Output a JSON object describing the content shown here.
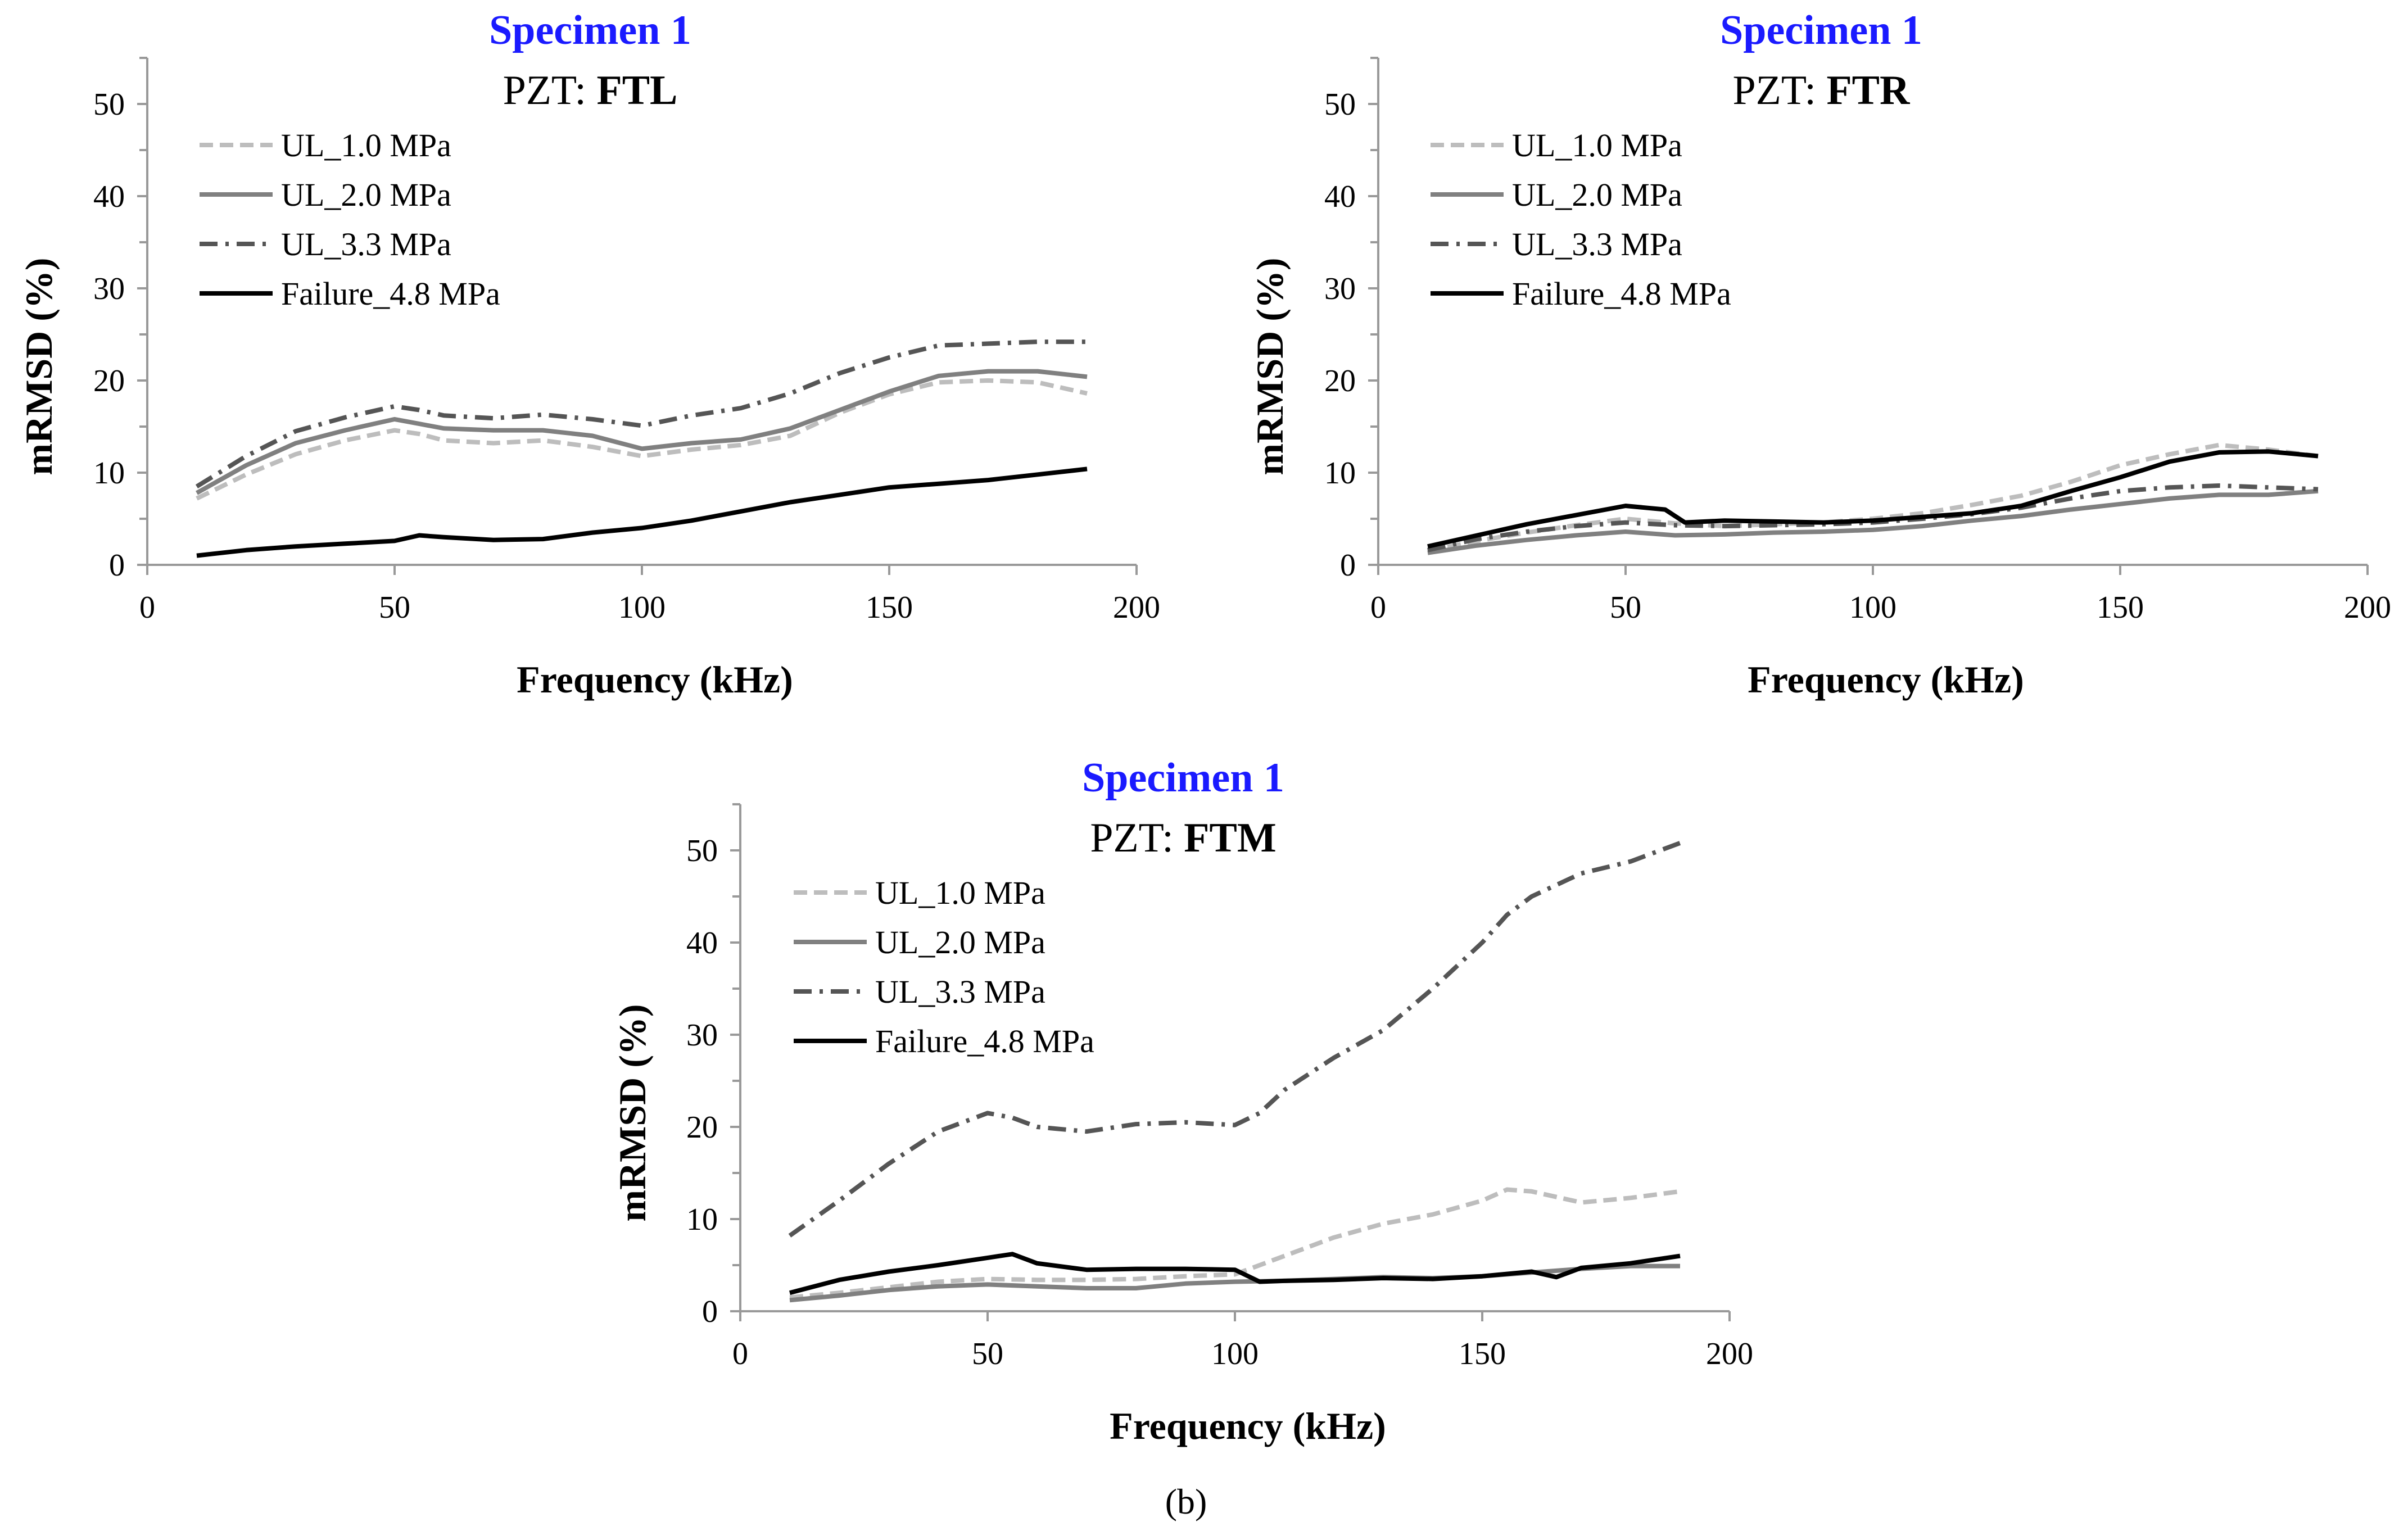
{
  "colors": {
    "title": "#1a1aff",
    "ul_1_0": "#bdbdbd",
    "ul_2_0": "#808080",
    "ul_3_3": "#555555",
    "failure": "#000000",
    "axis": "#999999"
  },
  "caption": "(b)",
  "chart_data": [
    {
      "type": "line",
      "title": "Specimen 1",
      "subtitle_prefix": "PZT: ",
      "subtitle_bold": "FTL",
      "xlabel": "Frequency (kHz)",
      "ylabel": "mRMSD (%)",
      "xlim": [
        0,
        200
      ],
      "ylim": [
        0,
        55
      ],
      "xticks": [
        "0",
        "50",
        "100",
        "150",
        "200"
      ],
      "yticks": [
        "0",
        "10",
        "20",
        "30",
        "40",
        "50"
      ],
      "legend_position": "top-left",
      "series": [
        {
          "name": "UL_1.0 MPa",
          "style": "dashed",
          "color": "#bdbdbd",
          "x": [
            10,
            20,
            30,
            40,
            50,
            55,
            60,
            70,
            80,
            90,
            100,
            110,
            120,
            130,
            140,
            150,
            160,
            170,
            180,
            190
          ],
          "y": [
            7.2,
            9.8,
            12,
            13.5,
            14.6,
            14.2,
            13.5,
            13.2,
            13.5,
            12.8,
            11.8,
            12.5,
            13,
            14,
            16.5,
            18.5,
            19.8,
            20,
            19.8,
            18.6
          ]
        },
        {
          "name": "UL_2.0 MPa",
          "style": "solid",
          "color": "#808080",
          "x": [
            10,
            20,
            30,
            40,
            50,
            55,
            60,
            70,
            80,
            90,
            100,
            110,
            120,
            130,
            140,
            150,
            160,
            170,
            180,
            190
          ],
          "y": [
            7.8,
            10.8,
            13.2,
            14.6,
            15.8,
            15.3,
            14.8,
            14.6,
            14.6,
            14,
            12.6,
            13.2,
            13.6,
            14.8,
            16.8,
            18.8,
            20.5,
            21,
            21,
            20.4
          ]
        },
        {
          "name": "UL_3.3 MPa",
          "style": "dashdot",
          "color": "#555555",
          "x": [
            10,
            20,
            30,
            40,
            50,
            55,
            60,
            70,
            80,
            90,
            100,
            110,
            120,
            130,
            140,
            150,
            160,
            170,
            180,
            190
          ],
          "y": [
            8.5,
            11.8,
            14.5,
            16,
            17.2,
            16.8,
            16.2,
            15.9,
            16.3,
            15.8,
            15.1,
            16.2,
            17,
            18.6,
            20.8,
            22.5,
            23.8,
            24,
            24.2,
            24.2
          ]
        },
        {
          "name": "Failure_4.8 MPa",
          "style": "solid",
          "color": "#000000",
          "x": [
            10,
            20,
            30,
            40,
            50,
            55,
            60,
            70,
            80,
            90,
            100,
            110,
            120,
            130,
            140,
            150,
            160,
            170,
            180,
            190
          ],
          "y": [
            1,
            1.6,
            2,
            2.3,
            2.6,
            3.2,
            3,
            2.7,
            2.8,
            3.5,
            4,
            4.8,
            5.8,
            6.8,
            7.6,
            8.4,
            8.8,
            9.2,
            9.8,
            10.4
          ]
        }
      ]
    },
    {
      "type": "line",
      "title": "Specimen 1",
      "subtitle_prefix": "PZT: ",
      "subtitle_bold": "FTR",
      "xlabel": "Frequency (kHz)",
      "ylabel": "mRMSD (%)",
      "xlim": [
        0,
        200
      ],
      "ylim": [
        0,
        55
      ],
      "xticks": [
        "0",
        "50",
        "100",
        "150",
        "200"
      ],
      "yticks": [
        "0",
        "10",
        "20",
        "30",
        "40",
        "50"
      ],
      "legend_position": "top-left",
      "series": [
        {
          "name": "UL_1.0 MPa",
          "style": "dashed",
          "color": "#bdbdbd",
          "x": [
            10,
            20,
            30,
            40,
            50,
            60,
            70,
            80,
            90,
            100,
            110,
            120,
            130,
            140,
            150,
            160,
            170,
            180,
            190
          ],
          "y": [
            1.5,
            2.6,
            3.5,
            4.3,
            5,
            4.5,
            4.2,
            4.4,
            4.6,
            5,
            5.6,
            6.5,
            7.5,
            9,
            10.8,
            12,
            13,
            12.5,
            11.8
          ]
        },
        {
          "name": "UL_2.0 MPa",
          "style": "solid",
          "color": "#808080",
          "x": [
            10,
            20,
            30,
            40,
            50,
            60,
            70,
            80,
            90,
            100,
            110,
            120,
            130,
            140,
            150,
            160,
            170,
            180,
            190
          ],
          "y": [
            1.3,
            2.1,
            2.7,
            3.2,
            3.6,
            3.2,
            3.3,
            3.5,
            3.6,
            3.8,
            4.2,
            4.8,
            5.3,
            6,
            6.6,
            7.2,
            7.6,
            7.6,
            8
          ]
        },
        {
          "name": "UL_3.3 MPa",
          "style": "dashdot",
          "color": "#555555",
          "x": [
            10,
            20,
            30,
            40,
            50,
            60,
            70,
            80,
            90,
            100,
            110,
            120,
            130,
            140,
            150,
            160,
            170,
            180,
            190
          ],
          "y": [
            1.6,
            2.8,
            3.6,
            4.2,
            4.6,
            4.3,
            4.2,
            4.3,
            4.4,
            4.6,
            5,
            5.5,
            6.2,
            7.2,
            8,
            8.4,
            8.6,
            8.4,
            8.2
          ]
        },
        {
          "name": "Failure_4.8 MPa",
          "style": "solid",
          "color": "#000000",
          "x": [
            10,
            20,
            30,
            40,
            50,
            58,
            62,
            70,
            80,
            90,
            100,
            110,
            120,
            130,
            140,
            150,
            160,
            170,
            180,
            190
          ],
          "y": [
            2,
            3.2,
            4.4,
            5.4,
            6.4,
            6,
            4.6,
            4.8,
            4.7,
            4.6,
            4.8,
            5.2,
            5.6,
            6.4,
            8,
            9.5,
            11.2,
            12.2,
            12.3,
            11.8
          ]
        }
      ]
    },
    {
      "type": "line",
      "title": "Specimen 1",
      "subtitle_prefix": "PZT: ",
      "subtitle_bold": "FTM",
      "xlabel": "Frequency (kHz)",
      "ylabel": "mRMSD (%)",
      "xlim": [
        0,
        200
      ],
      "ylim": [
        0,
        55
      ],
      "xticks": [
        "0",
        "50",
        "100",
        "150",
        "200"
      ],
      "yticks": [
        "0",
        "10",
        "20",
        "30",
        "40",
        "50"
      ],
      "legend_position": "top-left",
      "series": [
        {
          "name": "UL_1.0 MPa",
          "style": "dashed",
          "color": "#bdbdbd",
          "x": [
            10,
            20,
            30,
            40,
            50,
            60,
            70,
            80,
            90,
            100,
            110,
            120,
            130,
            140,
            150,
            155,
            160,
            170,
            180,
            190
          ],
          "y": [
            1.5,
            2,
            2.6,
            3.2,
            3.5,
            3.4,
            3.4,
            3.5,
            3.8,
            4,
            6,
            8,
            9.5,
            10.5,
            12,
            13.2,
            13,
            11.8,
            12.3,
            13
          ]
        },
        {
          "name": "UL_2.0 MPa",
          "style": "solid",
          "color": "#808080",
          "x": [
            10,
            20,
            30,
            40,
            50,
            60,
            70,
            80,
            90,
            100,
            110,
            120,
            130,
            140,
            150,
            160,
            170,
            180,
            190
          ],
          "y": [
            1.2,
            1.7,
            2.3,
            2.7,
            2.9,
            2.7,
            2.5,
            2.5,
            3,
            3.2,
            3.3,
            3.5,
            3.7,
            3.6,
            3.8,
            4.2,
            4.6,
            4.9,
            4.9
          ]
        },
        {
          "name": "UL_3.3 MPa",
          "style": "dashdot",
          "color": "#555555",
          "x": [
            10,
            20,
            30,
            40,
            50,
            55,
            60,
            70,
            80,
            90,
            100,
            105,
            110,
            120,
            130,
            140,
            150,
            155,
            160,
            170,
            180,
            190
          ],
          "y": [
            8.2,
            12,
            16,
            19.5,
            21.5,
            21,
            20,
            19.5,
            20.3,
            20.5,
            20.2,
            21.5,
            24,
            27.5,
            30.5,
            35,
            40,
            43,
            45,
            47.5,
            48.8,
            50.8
          ]
        },
        {
          "name": "Failure_4.8 MPa",
          "style": "solid",
          "color": "#000000",
          "x": [
            10,
            20,
            30,
            40,
            50,
            55,
            60,
            70,
            80,
            90,
            100,
            105,
            110,
            120,
            130,
            140,
            150,
            160,
            165,
            170,
            180,
            190
          ],
          "y": [
            2,
            3.4,
            4.3,
            5,
            5.8,
            6.2,
            5.2,
            4.5,
            4.6,
            4.6,
            4.5,
            3.2,
            3.3,
            3.4,
            3.6,
            3.5,
            3.8,
            4.3,
            3.7,
            4.7,
            5.2,
            6
          ]
        }
      ]
    }
  ]
}
